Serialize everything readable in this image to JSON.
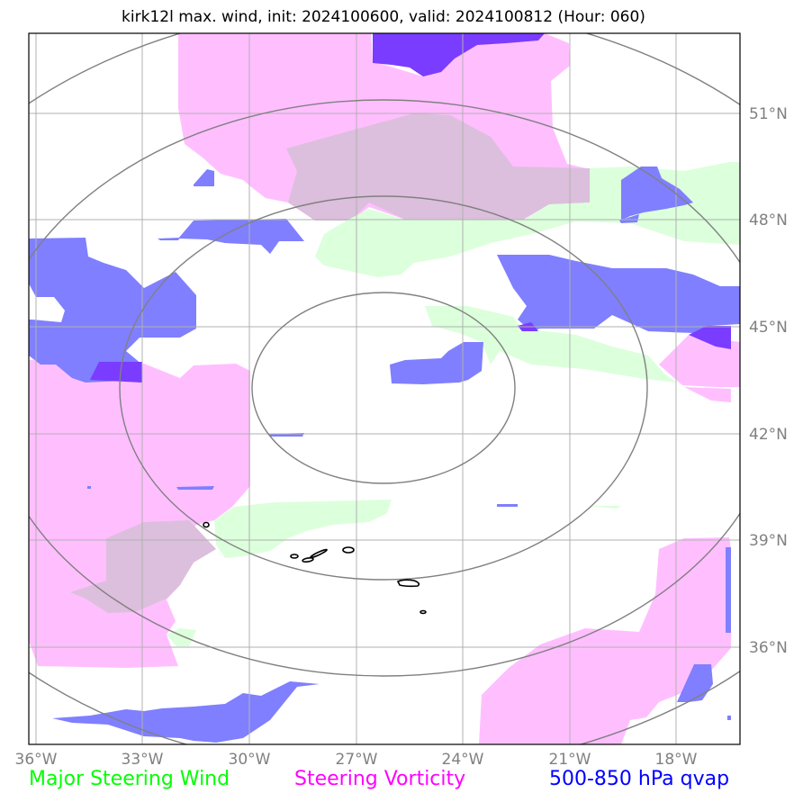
{
  "title": "kirk12l max. wind, init: 2024100600, valid: 2024100812 (Hour: 060)",
  "axes": {
    "lon_labels": [
      "36°W",
      "33°W",
      "30°W",
      "27°W",
      "24°W",
      "21°W",
      "18°W"
    ],
    "lat_labels": [
      "51°N",
      "48°N",
      "45°N",
      "42°N",
      "39°N",
      "36°N"
    ]
  },
  "legend": {
    "steering_wind": "Major Steering Wind",
    "steering_vorticity": "Steering Vorticity",
    "qvap": "500-850 hPa qvap"
  },
  "colors": {
    "steering_wind": "#00ff00",
    "steering_wind_fill": "#dcffdc",
    "steering_vorticity": "#ff00ff",
    "steering_vorticity_fill": "#ffbfff",
    "qvap": "#0000ff",
    "qvap_fill": "#7f7fff",
    "qvap_dark_fill": "#7a3cff",
    "overlap_fill": "#dcbfdc",
    "grid": "#b0b0b0",
    "range_rings": "#808080"
  },
  "map": {
    "range_rings": 4,
    "grid": true
  }
}
